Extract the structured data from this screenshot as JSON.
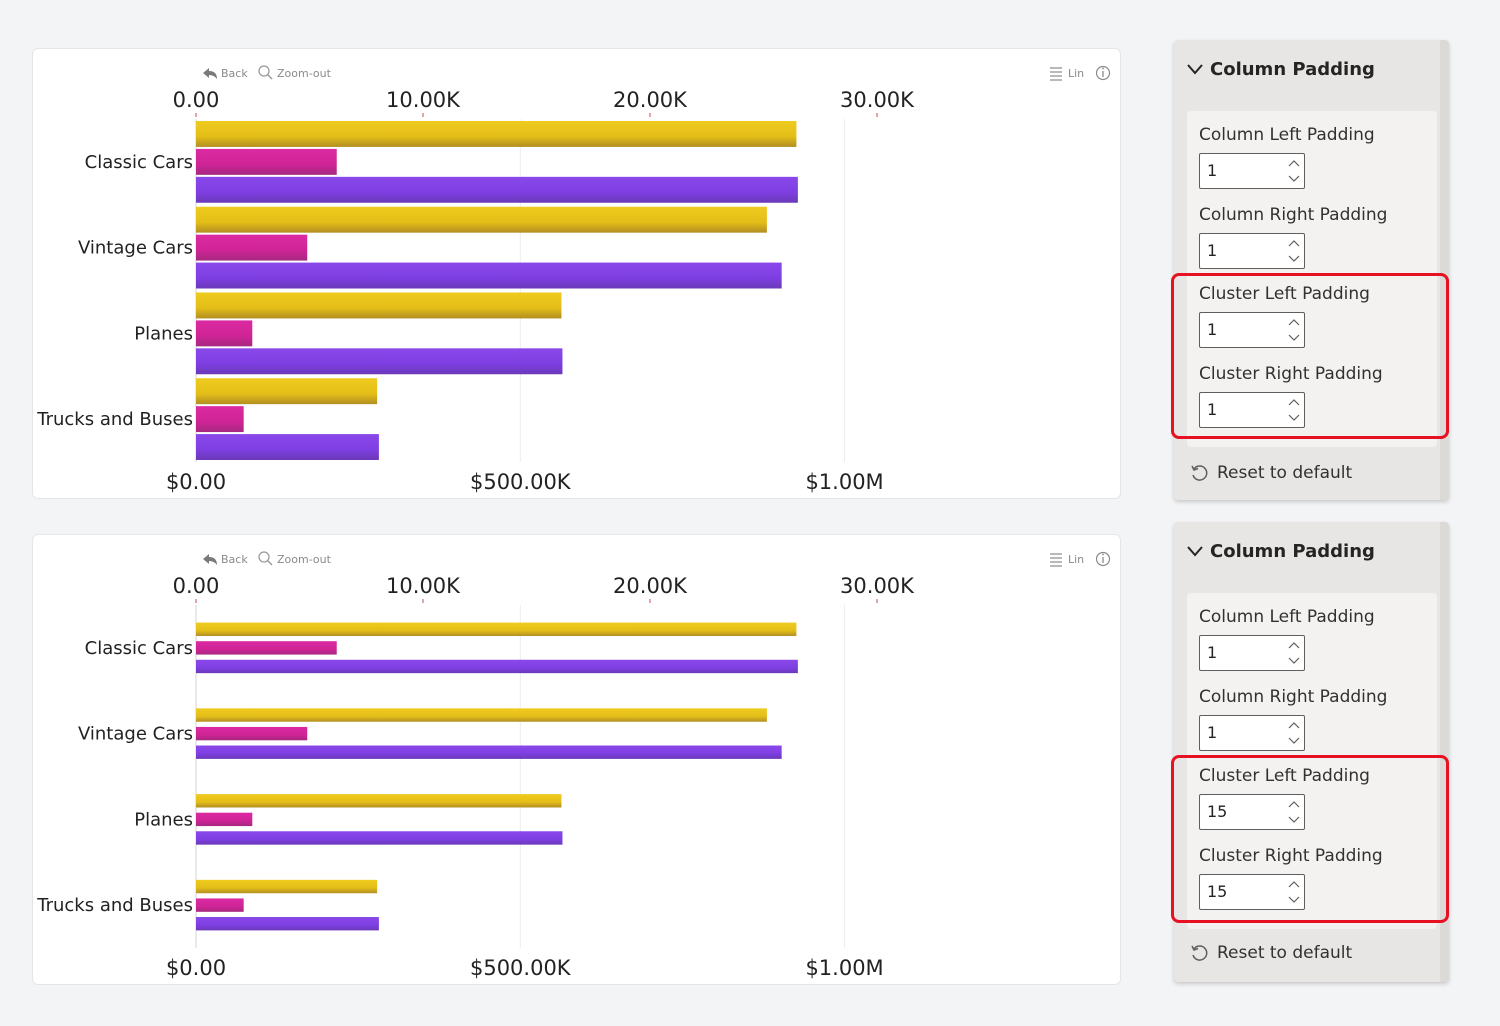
{
  "toolbar": {
    "back": "Back",
    "zoom_out": "Zoom-out",
    "lin": "Lin"
  },
  "chart_data": [
    {
      "type": "bar",
      "orientation": "horizontal",
      "categories": [
        "Classic Cars",
        "Vintage Cars",
        "Planes",
        "Trucks and Buses"
      ],
      "top_axis": {
        "ticks": [
          "0.00",
          "10.00K",
          "20.00K",
          "30.00K"
        ],
        "range": [
          0,
          40000
        ]
      },
      "bottom_axis": {
        "ticks": [
          "$0.00",
          "$500.00K",
          "$1.00M"
        ],
        "range": [
          0,
          1400000
        ]
      },
      "series": [
        {
          "axis": "top",
          "color": "#e8c21b",
          "values": [
            26450,
            25150,
            16100,
            7980
          ]
        },
        {
          "axis": "top",
          "color": "#d42398",
          "values": [
            6200,
            4900,
            2480,
            2100
          ]
        },
        {
          "axis": "bottom",
          "color": "#7b3fe0",
          "values": [
            928000,
            903000,
            565000,
            282000
          ]
        }
      ],
      "cluster_padding": 1
    },
    {
      "type": "bar",
      "orientation": "horizontal",
      "categories": [
        "Classic Cars",
        "Vintage Cars",
        "Planes",
        "Trucks and Buses"
      ],
      "top_axis": {
        "ticks": [
          "0.00",
          "10.00K",
          "20.00K",
          "30.00K"
        ],
        "range": [
          0,
          40000
        ]
      },
      "bottom_axis": {
        "ticks": [
          "$0.00",
          "$500.00K",
          "$1.00M"
        ],
        "range": [
          0,
          1400000
        ]
      },
      "series": [
        {
          "axis": "top",
          "color": "#e8c21b",
          "values": [
            26450,
            25150,
            16100,
            7980
          ]
        },
        {
          "axis": "top",
          "color": "#d42398",
          "values": [
            6200,
            4900,
            2480,
            2100
          ]
        },
        {
          "axis": "bottom",
          "color": "#7b3fe0",
          "values": [
            928000,
            903000,
            565000,
            282000
          ]
        }
      ],
      "cluster_padding": 15
    }
  ],
  "panels": [
    {
      "title": "Column Padding",
      "fields": [
        {
          "label": "Column Left Padding",
          "value": "1"
        },
        {
          "label": "Column Right Padding",
          "value": "1"
        },
        {
          "label": "Cluster Left Padding",
          "value": "1"
        },
        {
          "label": "Cluster Right Padding",
          "value": "1"
        }
      ],
      "reset": "Reset to default"
    },
    {
      "title": "Column Padding",
      "fields": [
        {
          "label": "Column Left Padding",
          "value": "1"
        },
        {
          "label": "Column Right Padding",
          "value": "1"
        },
        {
          "label": "Cluster Left Padding",
          "value": "15"
        },
        {
          "label": "Cluster Right Padding",
          "value": "15"
        }
      ],
      "reset": "Reset to default"
    }
  ]
}
